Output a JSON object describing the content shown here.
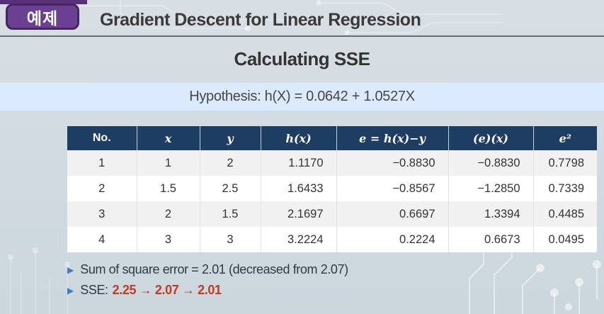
{
  "header": {
    "badge": "예제",
    "title": "Gradient Descent for Linear Regression"
  },
  "slide": {
    "title": "Calculating SSE",
    "hypothesis": "Hypothesis: h(X) = 0.0642 + 1.0527X"
  },
  "table": {
    "columns": [
      "No.",
      "x",
      "y",
      "h(x)",
      "e = h(x)−y",
      "(e)(x)",
      "e²"
    ],
    "rows": [
      [
        "1",
        "1",
        "2",
        "1.1170",
        "−0.8830",
        "−0.8830",
        "0.7798"
      ],
      [
        "2",
        "1.5",
        "2.5",
        "1.6433",
        "−0.8567",
        "−1.2850",
        "0.7339"
      ],
      [
        "3",
        "2",
        "1.5",
        "2.1697",
        "0.6697",
        "1.3394",
        "0.4485"
      ],
      [
        "4",
        "3",
        "3",
        "3.2224",
        "0.2224",
        "0.6673",
        "0.0495"
      ]
    ]
  },
  "notes": {
    "bullet1": "Sum of square error = 2.01  (decreased from 2.07)",
    "bullet2_label": "SSE:",
    "bullet2_value": "2.25 → 2.07 → 2.01",
    "bullet_glyph": "▶"
  },
  "colors": {
    "badge_purple": "#6b3f92",
    "badge_border": "#45265f",
    "table_header_navy": "#1d3d63",
    "hypothesis_band_blue": "#dbeafc",
    "row_alt_gray": "#f1f1f2",
    "bullet_blue": "#3b7ec6",
    "sse_red": "#c33a23"
  }
}
